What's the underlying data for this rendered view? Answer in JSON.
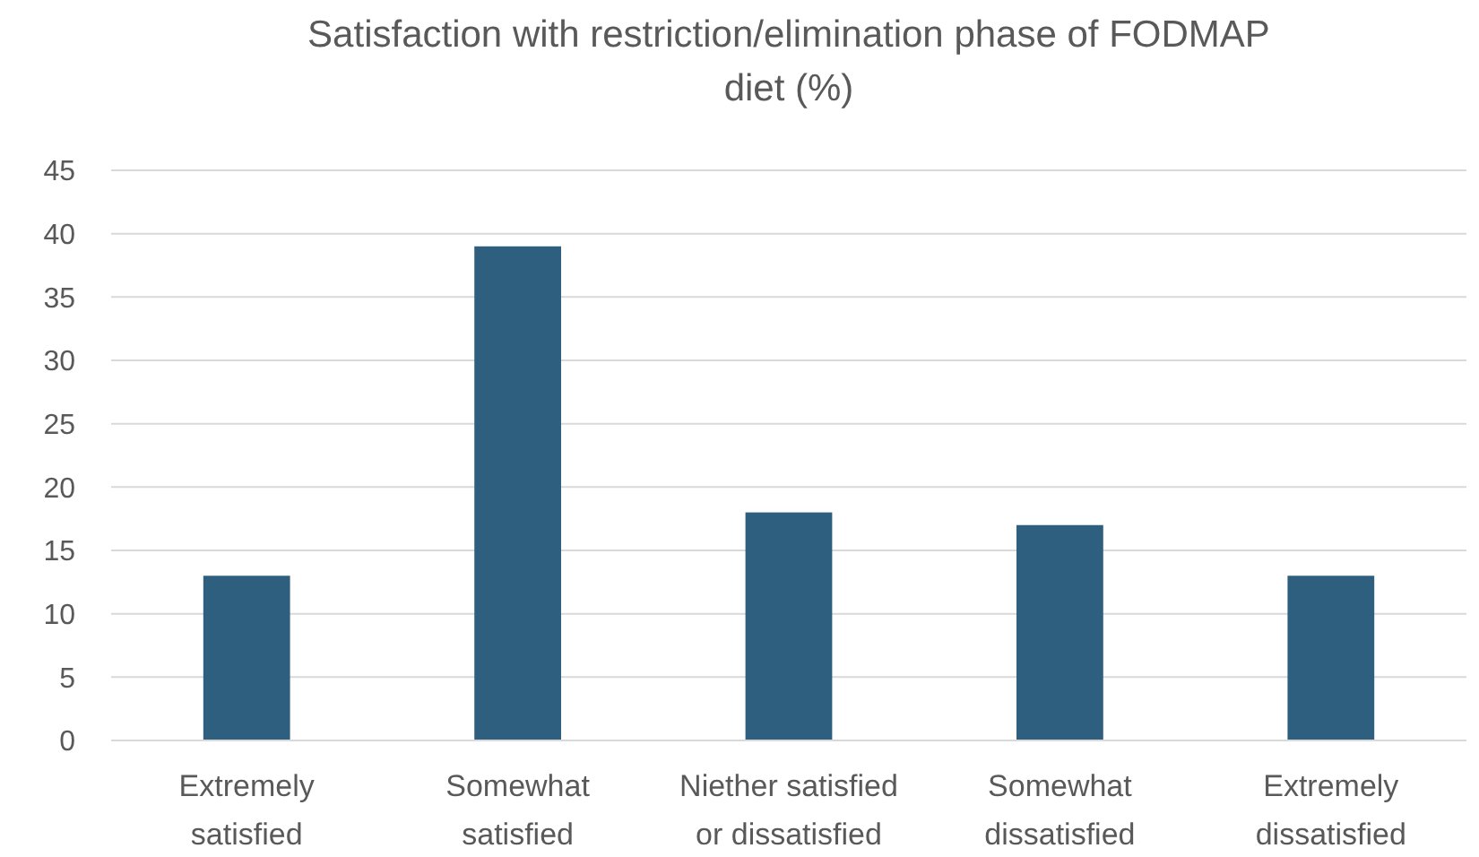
{
  "chart_data": {
    "type": "bar",
    "title": "Satisfaction with restriction/elimination phase of FODMAP diet (%)",
    "categories": [
      "Extremely satisfied",
      "Somewhat satisfied",
      "Niether satisfied or dissatisfied",
      "Somewhat dissatisfied",
      "Extremely dissatisfied"
    ],
    "values": [
      13,
      39,
      18,
      17,
      13
    ],
    "color": "#2e5f7f",
    "ylim": [
      0,
      45
    ],
    "yticks": [
      0,
      5,
      10,
      15,
      20,
      25,
      30,
      35,
      40,
      45
    ],
    "grid": "y"
  }
}
